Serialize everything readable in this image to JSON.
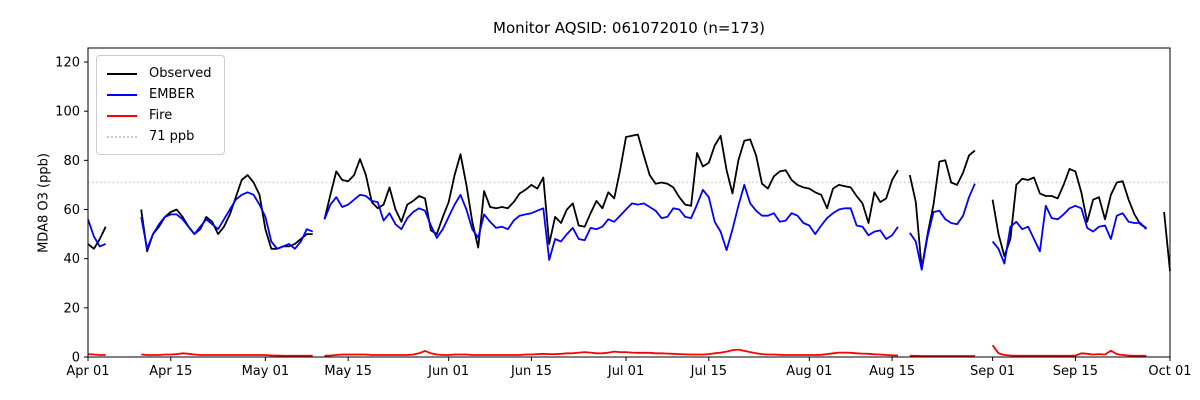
{
  "title": "Monitor AQSID: 061072010 (n=173)",
  "y_axis": {
    "label": "MDA8 O3 (ppb)",
    "ticks": [
      0,
      20,
      40,
      60,
      80,
      100,
      120
    ]
  },
  "x_axis": {
    "total_days": 183,
    "ticks": [
      {
        "day": 0,
        "label": "Apr 01"
      },
      {
        "day": 14,
        "label": "Apr 15"
      },
      {
        "day": 30,
        "label": "May 01"
      },
      {
        "day": 44,
        "label": "May 15"
      },
      {
        "day": 61,
        "label": "Jun 01"
      },
      {
        "day": 75,
        "label": "Jun 15"
      },
      {
        "day": 91,
        "label": "Jul 01"
      },
      {
        "day": 105,
        "label": "Jul 15"
      },
      {
        "day": 122,
        "label": "Aug 01"
      },
      {
        "day": 136,
        "label": "Aug 15"
      },
      {
        "day": 153,
        "label": "Sep 01"
      },
      {
        "day": 167,
        "label": "Sep 15"
      },
      {
        "day": 183,
        "label": "Oct 01"
      }
    ]
  },
  "legend": {
    "items": [
      {
        "label": "Observed",
        "color": "#000000",
        "style": "solid"
      },
      {
        "label": "EMBER",
        "color": "#0000ff",
        "style": "solid"
      },
      {
        "label": "Fire",
        "color": "#ff0000",
        "style": "solid"
      },
      {
        "label": "71 ppb",
        "color": "#c8c8c8",
        "style": "dotted"
      }
    ]
  },
  "chart_data": {
    "type": "line",
    "title": "Monitor AQSID: 061072010 (n=173)",
    "xlabel": "",
    "ylabel": "MDA8 O3 (ppb)",
    "x_unit": "day index, daily values; day 0 = Apr 01, day 183 = Oct 01; null = missing day",
    "ylim": [
      0,
      125.7
    ],
    "grid": false,
    "legend_position": "upper left",
    "threshold": {
      "value": 71,
      "label": "71 ppb",
      "color": "#c8c8c8",
      "style": "dotted"
    },
    "series": [
      {
        "name": "Observed",
        "color": "#000000",
        "values": [
          46,
          44,
          48,
          53,
          null,
          null,
          null,
          null,
          null,
          60,
          43,
          50,
          53,
          57,
          59,
          60,
          57,
          53,
          50,
          52,
          57,
          55,
          50,
          53,
          58,
          65,
          72,
          74,
          71,
          66,
          52,
          44,
          44,
          45,
          45,
          46,
          48,
          50,
          50,
          null,
          56,
          66,
          75.5,
          72,
          71.5,
          74,
          80.5,
          74,
          63,
          60.5,
          62,
          69,
          60,
          55,
          62,
          63.5,
          65.5,
          64.5,
          51.5,
          50,
          57,
          63,
          74,
          82.5,
          70,
          55,
          44.5,
          67.5,
          61,
          60.5,
          61,
          60.5,
          63,
          66.5,
          68,
          70,
          68.5,
          73,
          46,
          57,
          54.5,
          60,
          62.5,
          53.5,
          53,
          58.5,
          63.5,
          60.5,
          67,
          64.5,
          76,
          89.5,
          90,
          90.5,
          82,
          74,
          70.5,
          71,
          70.5,
          69,
          65,
          62,
          61.5,
          83,
          77.5,
          79,
          86,
          90,
          76,
          66.5,
          80,
          88,
          88.5,
          82,
          70.5,
          68.5,
          73.5,
          75.5,
          76,
          72,
          70,
          69,
          68.5,
          67,
          66,
          60.5,
          68.5,
          70,
          69.5,
          69,
          65.5,
          62.5,
          54.5,
          67,
          63,
          64.5,
          72,
          76,
          null,
          74,
          63,
          36,
          50,
          62,
          79.5,
          80,
          71,
          70,
          75,
          82,
          84,
          null,
          null,
          64,
          50,
          41,
          48,
          70,
          72.5,
          72,
          73,
          66.5,
          65.5,
          65.5,
          64.5,
          70,
          76.5,
          75.5,
          67,
          55,
          64,
          65,
          56,
          66,
          71,
          71.5,
          64,
          58,
          54,
          52.5,
          null,
          null,
          59,
          35
        ]
      },
      {
        "name": "EMBER",
        "color": "#0000ff",
        "values": [
          56,
          49,
          45,
          46,
          null,
          null,
          null,
          null,
          null,
          57,
          44,
          50,
          54,
          57,
          58,
          58,
          56,
          53,
          50,
          53,
          56,
          54,
          52,
          56,
          60,
          64,
          66,
          67,
          66,
          62,
          57,
          47,
          44,
          45,
          46,
          44,
          47,
          52,
          51,
          null,
          56,
          62,
          65,
          61,
          62,
          64,
          66,
          65.5,
          63.5,
          63,
          55.5,
          58.5,
          54,
          52,
          56.5,
          59,
          60.5,
          59.5,
          53.5,
          48.5,
          52,
          57,
          62,
          66,
          60,
          52,
          48.5,
          58,
          55,
          52.5,
          53,
          52,
          55.5,
          57.5,
          58,
          58.5,
          59.5,
          60.5,
          39.5,
          48,
          47,
          50,
          52.5,
          48,
          47.5,
          52.5,
          52,
          53,
          56,
          55,
          57.5,
          60,
          62.5,
          62,
          62.5,
          61,
          59.5,
          56.5,
          57,
          60.5,
          60,
          57,
          56.5,
          62,
          68,
          65,
          55,
          51,
          43.5,
          52,
          61.5,
          70,
          62.5,
          59.5,
          57.5,
          57.5,
          58.5,
          55,
          55.5,
          58.5,
          57.5,
          54.5,
          53.5,
          50,
          53.5,
          56.5,
          58.5,
          60,
          60.5,
          60.5,
          53.5,
          53,
          49.5,
          51,
          51.5,
          48,
          49.5,
          53,
          null,
          50.5,
          47,
          35.5,
          49,
          59,
          59.5,
          56,
          54.5,
          54,
          57.5,
          65,
          70.5,
          null,
          null,
          47,
          44,
          38,
          53,
          55,
          52,
          53,
          48,
          43,
          61.5,
          56.5,
          56,
          58,
          60.5,
          61.5,
          60.5,
          52.5,
          51,
          53,
          53.5,
          48,
          57.5,
          58.5,
          55,
          54.5,
          54.5,
          52,
          null,
          null,
          null,
          null
        ]
      },
      {
        "name": "Fire",
        "color": "#ff0000",
        "values": [
          1.2,
          1,
          0.8,
          0.8,
          null,
          null,
          null,
          null,
          null,
          1,
          0.8,
          0.8,
          0.8,
          1,
          1,
          1.2,
          1.5,
          1.3,
          1,
          0.8,
          0.8,
          0.8,
          0.8,
          0.8,
          0.8,
          0.8,
          0.8,
          0.8,
          0.8,
          0.8,
          0.8,
          0.6,
          0.6,
          0.5,
          0.5,
          0.5,
          0.5,
          0.5,
          0.5,
          null,
          0.5,
          0.6,
          0.8,
          1,
          1,
          1,
          1,
          1,
          0.8,
          0.8,
          0.8,
          0.8,
          0.8,
          0.8,
          0.8,
          1,
          1.5,
          2.5,
          1.5,
          1,
          0.8,
          0.8,
          1,
          1,
          1,
          0.8,
          0.8,
          0.8,
          0.8,
          0.8,
          0.8,
          0.8,
          0.8,
          0.8,
          1,
          1,
          1.2,
          1.3,
          1.2,
          1.2,
          1.3,
          1.5,
          1.5,
          1.8,
          2,
          1.8,
          1.5,
          1.5,
          1.8,
          2.2,
          2,
          2,
          1.8,
          1.7,
          1.7,
          1.7,
          1.5,
          1.5,
          1.4,
          1.3,
          1.2,
          1.1,
          1,
          1,
          1,
          1.2,
          1.5,
          1.8,
          2.2,
          2.8,
          3,
          2.5,
          2,
          1.5,
          1.2,
          1,
          1,
          0.9,
          0.8,
          0.8,
          0.8,
          0.8,
          0.8,
          0.8,
          0.9,
          1.2,
          1.5,
          1.8,
          1.8,
          1.7,
          1.5,
          1.4,
          1.3,
          1.1,
          1,
          0.8,
          0.7,
          0.6,
          null,
          0.5,
          0.5,
          0.4,
          0.4,
          0.4,
          0.4,
          0.4,
          0.4,
          0.4,
          0.4,
          0.4,
          0.4,
          null,
          null,
          4.8,
          1.5,
          0.8,
          0.6,
          0.5,
          0.5,
          0.5,
          0.5,
          0.5,
          0.5,
          0.5,
          0.5,
          0.5,
          0.5,
          0.6,
          1.5,
          1.3,
          1,
          1.2,
          1,
          2.6,
          1.2,
          0.8,
          0.6,
          0.5,
          0.5,
          0.5,
          null,
          null,
          null,
          null
        ]
      }
    ]
  }
}
